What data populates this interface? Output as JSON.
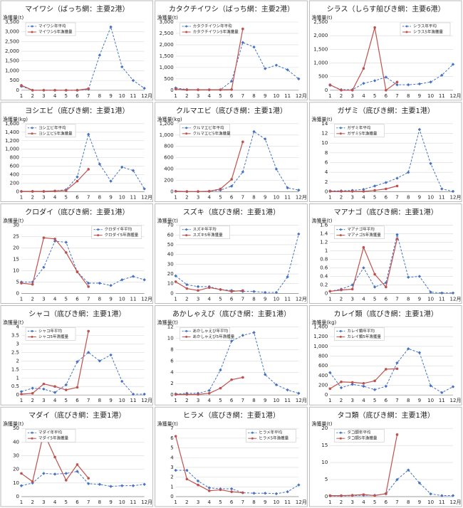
{
  "chart_data": [
    {
      "type": "line",
      "title": "マイワシ（ばっち網：主要2港）",
      "y_label": "漁獲量(t)",
      "x_label": "月",
      "categories": [
        "1",
        "2",
        "3",
        "4",
        "5",
        "6",
        "7",
        "8",
        "9",
        "10",
        "11",
        "12"
      ],
      "ylim": [
        0,
        3500
      ],
      "yticks": [
        0,
        500,
        {
          "value": 1000,
          "label": "1,000"
        },
        {
          "value": 1500,
          "label": "1,500"
        },
        {
          "value": 2000,
          "label": "2,000"
        },
        {
          "value": 2500,
          "label": "2,500"
        },
        {
          "value": 3000,
          "label": "3,000"
        },
        {
          "value": 3500,
          "label": "3,500"
        }
      ],
      "grid": true,
      "legend": "upper left",
      "series": [
        {
          "name": "マイワシ年平均",
          "color": "#4472c4",
          "values": [
            200,
            0,
            0,
            0,
            0,
            0,
            50,
            1800,
            3250,
            1200,
            500,
            100
          ]
        },
        {
          "name": "マイワシ5年漁獲量",
          "color": "#c0504d",
          "values": [
            250,
            0,
            0,
            0,
            0,
            0,
            80,
            null,
            null,
            null,
            null,
            null
          ]
        }
      ]
    },
    {
      "type": "line",
      "title": "カタクチイワシ（ばっち網：主要2港）",
      "y_label": "漁獲量(t)",
      "x_label": "月",
      "categories": [
        "1",
        "2",
        "3",
        "4",
        "5",
        "6",
        "7",
        "8",
        "9",
        "10",
        "11",
        "12"
      ],
      "ylim": [
        0,
        3000
      ],
      "yticks": [
        0,
        500,
        {
          "value": 1000,
          "label": "1,000"
        },
        {
          "value": 1500,
          "label": "1,500"
        },
        {
          "value": 2000,
          "label": "2,000"
        },
        {
          "value": 2500,
          "label": "2,500"
        },
        {
          "value": 3000,
          "label": "3,000"
        }
      ],
      "grid": true,
      "legend": "upper left",
      "series": [
        {
          "name": "カタクチイワシ年平均",
          "color": "#4472c4",
          "values": [
            100,
            30,
            20,
            20,
            20,
            400,
            2100,
            1900,
            950,
            1100,
            900,
            500
          ]
        },
        {
          "name": "カタクチイワシ5年漁獲量",
          "color": "#c0504d",
          "values": [
            50,
            20,
            20,
            20,
            20,
            30,
            2700,
            null,
            null,
            null,
            null,
            null
          ]
        }
      ]
    },
    {
      "type": "line",
      "title": "シラス（しらす船びき網：主要6港）",
      "y_label": "漁獲量(t)",
      "x_label": "月",
      "categories": [
        "1",
        "2",
        "3",
        "4",
        "5",
        "6",
        "7",
        "8",
        "9",
        "10",
        "11",
        "12"
      ],
      "ylim": [
        0,
        2500
      ],
      "yticks": [
        0,
        500,
        {
          "value": 1000,
          "label": "1,000"
        },
        {
          "value": 1500,
          "label": "1,500"
        },
        {
          "value": 2000,
          "label": "2,000"
        },
        {
          "value": 2500,
          "label": "2,500"
        }
      ],
      "grid": true,
      "legend": "upper right",
      "series": [
        {
          "name": "シラス年平均",
          "color": "#4472c4",
          "values": [
            180,
            20,
            20,
            250,
            350,
            480,
            200,
            200,
            230,
            300,
            550,
            950
          ]
        },
        {
          "name": "シラス5年漁獲量",
          "color": "#c0504d",
          "values": [
            200,
            0,
            0,
            800,
            2300,
            0,
            300,
            null,
            null,
            null,
            null,
            null
          ]
        }
      ]
    },
    {
      "type": "line",
      "title": "ヨシエビ（底びき網：主要1港）",
      "y_label": "漁獲量(kg)",
      "x_label": "月",
      "categories": [
        "1",
        "2",
        "3",
        "4",
        "5",
        "6",
        "7",
        "8",
        "9",
        "10",
        "11",
        "12"
      ],
      "ylim": [
        0,
        1600
      ],
      "yticks": [
        0,
        200,
        400,
        600,
        800,
        {
          "value": 1000,
          "label": "1,000"
        },
        {
          "value": 1200,
          "label": "1,200"
        },
        {
          "value": 1400,
          "label": "1,400"
        },
        {
          "value": 1600,
          "label": "1,600"
        }
      ],
      "grid": true,
      "legend": "upper left",
      "series": [
        {
          "name": "ヨシエビ年平均",
          "color": "#4472c4",
          "values": [
            10,
            10,
            10,
            20,
            50,
            350,
            1350,
            650,
            250,
            580,
            500,
            70
          ]
        },
        {
          "name": "ヨシエビ5年漁獲量",
          "color": "#c0504d",
          "values": [
            10,
            10,
            10,
            20,
            30,
            250,
            530,
            null,
            null,
            null,
            null,
            null
          ]
        }
      ]
    },
    {
      "type": "line",
      "title": "クルマエビ（底びき網：主要1港）",
      "y_label": "漁獲量(kg)",
      "x_label": "月",
      "categories": [
        "1",
        "2",
        "3",
        "4",
        "5",
        "6",
        "7",
        "8",
        "9",
        "10",
        "11",
        "12"
      ],
      "ylim": [
        0,
        1200
      ],
      "yticks": [
        0,
        200,
        400,
        600,
        800,
        {
          "value": 1000,
          "label": "1,000"
        },
        {
          "value": 1200,
          "label": "1,200"
        }
      ],
      "grid": true,
      "legend": "upper left",
      "series": [
        {
          "name": "クルマエビ年平均",
          "color": "#4472c4",
          "values": [
            10,
            5,
            5,
            10,
            30,
            100,
            350,
            1060,
            930,
            400,
            70,
            30
          ]
        },
        {
          "name": "クルマエビ5年漁獲量",
          "color": "#c0504d",
          "values": [
            10,
            5,
            5,
            10,
            50,
            220,
            880,
            null,
            null,
            null,
            null,
            null
          ]
        }
      ]
    },
    {
      "type": "line",
      "title": "ガザミ（底びき網：主要1港）",
      "y_label": "漁獲量(t)",
      "x_label": "月",
      "categories": [
        "1",
        "2",
        "3",
        "4",
        "5",
        "6",
        "7",
        "8",
        "9",
        "10",
        "11",
        "12"
      ],
      "ylim": [
        0,
        14
      ],
      "yticks": [
        0,
        2,
        4,
        6,
        8,
        10,
        12,
        14
      ],
      "grid": true,
      "legend": "upper left",
      "series": [
        {
          "name": "ガザミ年平均",
          "color": "#4472c4",
          "values": [
            0.2,
            0.2,
            0.3,
            0.5,
            1.2,
            1.9,
            2.8,
            4.0,
            12.8,
            5.8,
            0.6,
            0.1
          ]
        },
        {
          "name": "ガザミ5年漁獲量",
          "color": "#c0504d",
          "values": [
            0.1,
            0.1,
            0.1,
            0.1,
            0.3,
            0.6,
            1.2,
            null,
            null,
            null,
            null,
            null
          ]
        }
      ]
    },
    {
      "type": "line",
      "title": "クロダイ（底びき網：主要1港）",
      "y_label": "漁獲量(t)",
      "x_label": "月",
      "categories": [
        "1",
        "2",
        "3",
        "4",
        "5",
        "6",
        "7",
        "8",
        "9",
        "10",
        "11",
        "12"
      ],
      "ylim": [
        0,
        30
      ],
      "yticks": [
        0,
        5,
        10,
        15,
        20,
        25,
        30
      ],
      "grid": true,
      "legend": "upper right",
      "series": [
        {
          "name": "クロダイ年平均",
          "color": "#4472c4",
          "values": [
            5,
            5,
            11.5,
            23,
            22.5,
            9.5,
            4.5,
            4.5,
            3.5,
            6,
            7.5,
            6
          ]
        },
        {
          "name": "クロダイ5年漁獲量",
          "color": "#c0504d",
          "values": [
            4.5,
            4,
            24.5,
            24,
            18,
            9.5,
            3,
            null,
            null,
            null,
            null,
            null
          ]
        }
      ]
    },
    {
      "type": "line",
      "title": "スズキ（底びき網：主要1港）",
      "y_label": "漁獲量(t)",
      "x_label": "月",
      "categories": [
        "1",
        "2",
        "3",
        "4",
        "5",
        "6",
        "7",
        "8",
        "9",
        "10",
        "11",
        "12"
      ],
      "ylim": [
        0,
        70
      ],
      "yticks": [
        0,
        10,
        20,
        30,
        40,
        50,
        60,
        70
      ],
      "grid": true,
      "legend": "upper left",
      "series": [
        {
          "name": "スズキ年平均",
          "color": "#4472c4",
          "values": [
            18,
            9,
            7,
            7,
            4,
            3,
            2,
            2,
            1,
            1,
            17,
            61
          ]
        },
        {
          "name": "スズキ5年漁獲量",
          "color": "#c0504d",
          "values": [
            12,
            5,
            3,
            6,
            4,
            2,
            3,
            null,
            null,
            null,
            null,
            null
          ]
        }
      ]
    },
    {
      "type": "line",
      "title": "マアナゴ（底びき網：主要1港）",
      "y_label": "漁獲量(t)",
      "x_label": "月",
      "categories": [
        "1",
        "2",
        "3",
        "4",
        "5",
        "6",
        "7",
        "8",
        "9",
        "10",
        "11",
        "12"
      ],
      "ylim": [
        0,
        1.6
      ],
      "yticks": [
        0,
        0.2,
        0.4,
        0.6,
        0.8,
        1,
        1.2,
        1.4,
        1.6
      ],
      "grid": true,
      "legend": "upper left",
      "series": [
        {
          "name": "マアナゴ年平均",
          "color": "#4472c4",
          "values": [
            0.05,
            0.1,
            0.2,
            0.6,
            0.15,
            0.25,
            1.38,
            0.38,
            0.4,
            0.03,
            0.01,
            0.01
          ]
        },
        {
          "name": "マアナゴ5年漁獲量",
          "color": "#c0504d",
          "values": [
            0.05,
            0.08,
            0.1,
            1.08,
            0.45,
            0.15,
            1.28,
            null,
            null,
            null,
            null,
            null
          ]
        }
      ]
    },
    {
      "type": "line",
      "title": "シャコ（底びき網：主要1港）",
      "y_label": "漁獲量(t)",
      "x_label": "月",
      "categories": [
        "1",
        "2",
        "3",
        "4",
        "5",
        "6",
        "7",
        "8",
        "9",
        "10",
        "11",
        "12"
      ],
      "ylim": [
        0,
        4
      ],
      "yticks": [
        0,
        0.5,
        1,
        1.5,
        2,
        2.5,
        3,
        3.5,
        4
      ],
      "grid": true,
      "legend": "upper left",
      "series": [
        {
          "name": "シャコ年平均",
          "color": "#4472c4",
          "values": [
            0.2,
            0.4,
            0.35,
            0.15,
            0.6,
            1.95,
            2.5,
            2,
            2.35,
            0.8,
            0.05,
            0.05
          ]
        },
        {
          "name": "シャコ5年漁獲量",
          "color": "#c0504d",
          "values": [
            0.05,
            0.1,
            0.65,
            0.5,
            0.3,
            0.45,
            3.75,
            null,
            null,
            null,
            null,
            null
          ]
        }
      ]
    },
    {
      "type": "line",
      "title": "あかしゃえび（底びき網：主要1港）",
      "y_label": "漁獲量(t)",
      "x_label": "月",
      "categories": [
        "1",
        "2",
        "3",
        "4",
        "5",
        "6",
        "7",
        "8",
        "9",
        "10",
        "11",
        "12"
      ],
      "ylim": [
        0,
        12
      ],
      "yticks": [
        0,
        2,
        4,
        6,
        8,
        10,
        12
      ],
      "grid": true,
      "legend": "upper left",
      "series": [
        {
          "name": "あかしゃえび年平均",
          "color": "#4472c4",
          "values": [
            0.2,
            0.3,
            0.3,
            0.8,
            4.4,
            9.5,
            10.5,
            11,
            3.6,
            1.8,
            0.9,
            0.3
          ]
        },
        {
          "name": "あかしゃえび5年漁獲量",
          "color": "#c0504d",
          "values": [
            0.1,
            0.1,
            0.1,
            0.3,
            1.2,
            2.7,
            3.1,
            null,
            null,
            null,
            null,
            null
          ]
        }
      ]
    },
    {
      "type": "line",
      "title": "カレイ類（底びき網：主要1港）",
      "y_label": "漁獲量(kg)",
      "x_label": "月",
      "categories": [
        "1",
        "2",
        "3",
        "4",
        "5",
        "6",
        "7",
        "8",
        "9",
        "10",
        "11",
        "12"
      ],
      "ylim": [
        0,
        1400
      ],
      "yticks": [
        0,
        200,
        400,
        600,
        800,
        {
          "value": 1000,
          "label": "1,000"
        },
        {
          "value": 1200,
          "label": "1,200"
        },
        {
          "value": 1400,
          "label": "1,400"
        }
      ],
      "grid": true,
      "legend": "upper left",
      "series": [
        {
          "name": "カレイ類年平均",
          "color": "#4472c4",
          "values": [
            460,
            150,
            220,
            180,
            110,
            180,
            660,
            950,
            870,
            190,
            50,
            170
          ]
        },
        {
          "name": "カレイ類5年漁獲量",
          "color": "#c0504d",
          "values": [
            130,
            270,
            260,
            240,
            290,
            530,
            540,
            null,
            null,
            null,
            null,
            null
          ]
        }
      ]
    },
    {
      "type": "line",
      "title": "マダイ（底びき網：主要1港）",
      "y_label": "漁獲量(t)",
      "x_label": "月",
      "categories": [
        "1",
        "2",
        "3",
        "4",
        "5",
        "6",
        "7",
        "8",
        "9",
        "10",
        "11",
        "12"
      ],
      "ylim": [
        0,
        50
      ],
      "yticks": [
        0,
        10,
        20,
        30,
        40,
        50
      ],
      "grid": true,
      "legend": "upper left",
      "series": [
        {
          "name": "マダイ年平均",
          "color": "#4472c4",
          "values": [
            8,
            10,
            17,
            16.5,
            17,
            18.5,
            9.5,
            9,
            7.5,
            8,
            8,
            9
          ]
        },
        {
          "name": "マダイ5年漁獲量",
          "color": "#c0504d",
          "values": [
            17,
            11,
            47,
            29,
            12,
            23.5,
            13.5,
            null,
            null,
            null,
            null,
            null
          ]
        }
      ]
    },
    {
      "type": "line",
      "title": "ヒラメ（底びき網：主要1港）",
      "y_label": "漁獲量(t)",
      "x_label": "月",
      "categories": [
        "1",
        "2",
        "3",
        "4",
        "5",
        "6",
        "7",
        "8",
        "9",
        "10",
        "11",
        "12"
      ],
      "ylim": [
        0,
        7
      ],
      "yticks": [
        0,
        1,
        2,
        3,
        4,
        5,
        6,
        7
      ],
      "grid": true,
      "legend": "upper right",
      "series": [
        {
          "name": "ヒラメ年平均",
          "color": "#4472c4",
          "values": [
            2.7,
            2.7,
            1.6,
            0.9,
            0.8,
            0.8,
            0.4,
            0.35,
            0.35,
            0.3,
            0.5,
            1.2
          ]
        },
        {
          "name": "ヒラメ5年漁獲量",
          "color": "#c0504d",
          "values": [
            6.2,
            1.8,
            1.2,
            0.6,
            0.7,
            0.5,
            0.4,
            null,
            null,
            null,
            null,
            null
          ]
        }
      ]
    },
    {
      "type": "line",
      "title": "タコ類（底びき網：主要1港）",
      "y_label": "漁獲量(t)",
      "x_label": "月",
      "categories": [
        "1",
        "2",
        "3",
        "4",
        "5",
        "6",
        "7",
        "8",
        "9",
        "10",
        "11",
        "12"
      ],
      "ylim": [
        0,
        20
      ],
      "yticks": [
        0,
        5,
        10,
        15,
        20
      ],
      "grid": true,
      "legend": "upper left",
      "series": [
        {
          "name": "タコ類年平均",
          "color": "#4472c4",
          "values": [
            0.2,
            0.2,
            0.3,
            0.4,
            0.4,
            0.8,
            5,
            7.8,
            4,
            0.8,
            0.3,
            0.3
          ]
        },
        {
          "name": "タコ類5年漁獲量",
          "color": "#c0504d",
          "values": [
            0.3,
            0.3,
            0.4,
            0.6,
            0.3,
            0.9,
            18.2,
            null,
            null,
            null,
            null,
            null
          ]
        }
      ]
    }
  ]
}
